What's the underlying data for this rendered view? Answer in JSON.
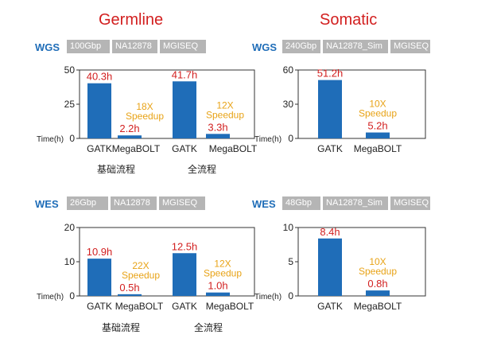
{
  "headers": {
    "germline": "Germline",
    "somatic": "Somatic"
  },
  "panels": [
    {
      "id": "germline-wgs",
      "label": "WGS",
      "tags": [
        "100Gbp",
        "NA12878",
        "MGISEQ"
      ],
      "sub_labels": [
        "基础流程",
        "全流程"
      ]
    },
    {
      "id": "somatic-wgs",
      "label": "WGS",
      "tags": [
        "240Gbp",
        "NA12878_Sim",
        "MGISEQ"
      ],
      "sub_labels": []
    },
    {
      "id": "germline-wes",
      "label": "WES",
      "tags": [
        "26Gbp",
        "NA12878",
        "MGISEQ"
      ],
      "sub_labels": [
        "基础流程",
        "全流程"
      ]
    },
    {
      "id": "somatic-wes",
      "label": "WES",
      "tags": [
        "48Gbp",
        "NA12878_Sim",
        "MGISEQ"
      ],
      "sub_labels": []
    }
  ],
  "chart_data": [
    {
      "type": "bar",
      "ylabel": "Time(h)",
      "ylim": [
        0,
        50
      ],
      "yticks": [
        0,
        25,
        50
      ],
      "categories": [
        "GATK",
        "MegaBOLT",
        "GATK",
        "MegaBOLT"
      ],
      "values": [
        40.3,
        2.2,
        41.7,
        3.3
      ],
      "value_labels": [
        "40.3h",
        "2.2h",
        "41.7h",
        "3.3h"
      ],
      "annotations": [
        {
          "lines": [
            "18X",
            "Speedup"
          ],
          "near_bar": 1
        },
        {
          "lines": [
            "12X",
            "Speedup"
          ],
          "near_bar": 3
        }
      ],
      "bar_color": "#1f6db8",
      "value_color": "#d21f1f",
      "annotation_color": "#e8a317"
    },
    {
      "type": "bar",
      "ylabel": "Time(h)",
      "ylim": [
        0,
        60
      ],
      "yticks": [
        0,
        30,
        60
      ],
      "categories": [
        "GATK",
        "MegaBOLT"
      ],
      "values": [
        51.2,
        5.2
      ],
      "value_labels": [
        "51.2h",
        "5.2h"
      ],
      "annotations": [
        {
          "lines": [
            "10X",
            "Speedup"
          ],
          "near_bar": 1
        }
      ],
      "bar_color": "#1f6db8",
      "value_color": "#d21f1f",
      "annotation_color": "#e8a317"
    },
    {
      "type": "bar",
      "ylabel": "Time(h)",
      "ylim": [
        0,
        20
      ],
      "yticks": [
        0,
        10,
        20
      ],
      "categories": [
        "GATK",
        "MegaBOLT",
        "GATK",
        "MegaBOLT"
      ],
      "values": [
        10.9,
        0.5,
        12.5,
        1.0
      ],
      "value_labels": [
        "10.9h",
        "0.5h",
        "12.5h",
        "1.0h"
      ],
      "annotations": [
        {
          "lines": [
            "22X",
            "Speedup"
          ],
          "near_bar": 1
        },
        {
          "lines": [
            "12X",
            "Speedup"
          ],
          "near_bar": 3
        }
      ],
      "bar_color": "#1f6db8",
      "value_color": "#d21f1f",
      "annotation_color": "#e8a317"
    },
    {
      "type": "bar",
      "ylabel": "Time(h)",
      "ylim": [
        0,
        10
      ],
      "yticks": [
        0,
        5,
        10
      ],
      "categories": [
        "GATK",
        "MegaBOLT"
      ],
      "values": [
        8.4,
        0.8
      ],
      "value_labels": [
        "8.4h",
        "0.8h"
      ],
      "annotations": [
        {
          "lines": [
            "10X",
            "Speedup"
          ],
          "near_bar": 1
        }
      ],
      "bar_color": "#1f6db8",
      "value_color": "#d21f1f",
      "annotation_color": "#e8a317"
    }
  ]
}
